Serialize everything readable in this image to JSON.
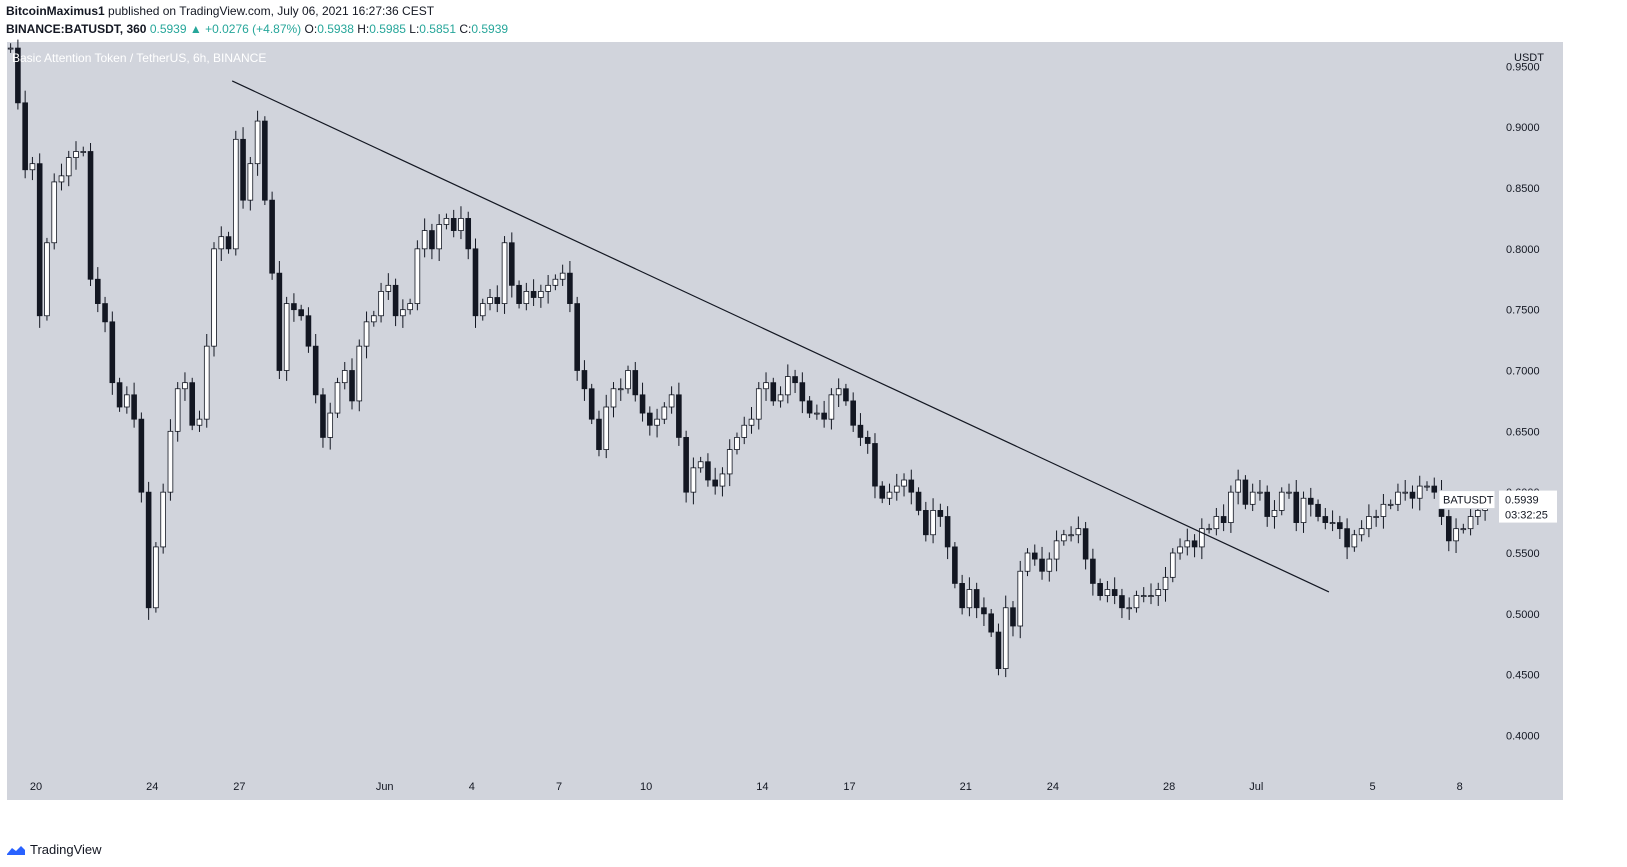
{
  "header": {
    "publisher": "BitcoinMaximus1",
    "published_text": "published on TradingView.com, July 06, 2021 16:27:36 CEST",
    "symbol": "BINANCE:BATUSDT, 360",
    "last": "0.5939",
    "change_arrow": "▲",
    "change": "+0.0276 (+4.87%)",
    "o_label": "O:",
    "o": "0.5938",
    "h_label": "H:",
    "h": "0.5985",
    "l_label": "L:",
    "l": "0.5851",
    "c_label": "C:",
    "c": "0.5939"
  },
  "footer": {
    "brand": "TradingView"
  },
  "colors": {
    "background": "#d1d4dc",
    "up_body": "#ffffff",
    "down_body": "#131722",
    "wick": "#131722",
    "axis_text": "#131722"
  },
  "chart_data": {
    "type": "candlestick",
    "title": "Basic Attention Token / TetherUS, 6h, BINANCE",
    "y_axis_unit": "USDT",
    "ylim": [
      0.37,
      0.97
    ],
    "y_ticks": [
      0.95,
      0.9,
      0.85,
      0.8,
      0.75,
      0.7,
      0.65,
      0.6,
      0.55,
      0.5,
      0.45,
      0.4
    ],
    "y_tick_labels": [
      "0.9500",
      "0.9000",
      "0.8500",
      "0.8000",
      "0.7500",
      "0.7000",
      "0.6500",
      "0.6000",
      "0.5500",
      "0.5000",
      "0.4500",
      "0.4000"
    ],
    "x_range": [
      "2021-05-19T00:00",
      "2021-07-09T06:00"
    ],
    "x_ticks": [
      {
        "date": "2021-05-20",
        "label": "20"
      },
      {
        "date": "2021-05-24",
        "label": "24"
      },
      {
        "date": "2021-05-27",
        "label": "27"
      },
      {
        "date": "2021-06-01",
        "label": "Jun"
      },
      {
        "date": "2021-06-04",
        "label": "4"
      },
      {
        "date": "2021-06-07",
        "label": "7"
      },
      {
        "date": "2021-06-10",
        "label": "10"
      },
      {
        "date": "2021-06-14",
        "label": "14"
      },
      {
        "date": "2021-06-17",
        "label": "17"
      },
      {
        "date": "2021-06-21",
        "label": "21"
      },
      {
        "date": "2021-06-24",
        "label": "24"
      },
      {
        "date": "2021-06-28",
        "label": "28"
      },
      {
        "date": "2021-07-01",
        "label": "Jul"
      },
      {
        "date": "2021-07-05",
        "label": "5"
      },
      {
        "date": "2021-07-08",
        "label": "8"
      }
    ],
    "start_time": "2021-05-19T00:00",
    "candle_interval": "6h",
    "closes": [
      0.965,
      0.92,
      0.865,
      0.87,
      0.745,
      0.805,
      0.855,
      0.86,
      0.875,
      0.88,
      0.88,
      0.775,
      0.755,
      0.74,
      0.69,
      0.67,
      0.68,
      0.66,
      0.6,
      0.505,
      0.555,
      0.6,
      0.65,
      0.685,
      0.69,
      0.655,
      0.66,
      0.72,
      0.8,
      0.81,
      0.8,
      0.89,
      0.84,
      0.87,
      0.905,
      0.84,
      0.78,
      0.7,
      0.755,
      0.75,
      0.745,
      0.72,
      0.68,
      0.645,
      0.665,
      0.69,
      0.7,
      0.675,
      0.72,
      0.74,
      0.745,
      0.765,
      0.77,
      0.745,
      0.75,
      0.755,
      0.8,
      0.815,
      0.8,
      0.82,
      0.825,
      0.815,
      0.825,
      0.8,
      0.745,
      0.755,
      0.76,
      0.755,
      0.805,
      0.77,
      0.755,
      0.765,
      0.76,
      0.765,
      0.77,
      0.775,
      0.78,
      0.755,
      0.7,
      0.685,
      0.66,
      0.635,
      0.67,
      0.685,
      0.685,
      0.7,
      0.68,
      0.665,
      0.655,
      0.66,
      0.67,
      0.68,
      0.645,
      0.6,
      0.62,
      0.625,
      0.61,
      0.605,
      0.615,
      0.635,
      0.645,
      0.655,
      0.66,
      0.685,
      0.69,
      0.675,
      0.68,
      0.695,
      0.69,
      0.675,
      0.665,
      0.665,
      0.66,
      0.68,
      0.685,
      0.675,
      0.655,
      0.645,
      0.64,
      0.605,
      0.595,
      0.6,
      0.605,
      0.61,
      0.6,
      0.585,
      0.565,
      0.585,
      0.58,
      0.555,
      0.525,
      0.505,
      0.52,
      0.505,
      0.5,
      0.485,
      0.455,
      0.505,
      0.49,
      0.535,
      0.55,
      0.545,
      0.535,
      0.545,
      0.56,
      0.565,
      0.565,
      0.57,
      0.545,
      0.525,
      0.515,
      0.52,
      0.515,
      0.505,
      0.505,
      0.515,
      0.515,
      0.515,
      0.52,
      0.53,
      0.55,
      0.555,
      0.56,
      0.555,
      0.57,
      0.57,
      0.58,
      0.575,
      0.6,
      0.61,
      0.59,
      0.6,
      0.6,
      0.58,
      0.585,
      0.6,
      0.6,
      0.575,
      0.595,
      0.59,
      0.58,
      0.575,
      0.575,
      0.57,
      0.555,
      0.565,
      0.57,
      0.58,
      0.58,
      0.59,
      0.59,
      0.6,
      0.6,
      0.595,
      0.605,
      0.605,
      0.6,
      0.58,
      0.56,
      0.57,
      0.57,
      0.58,
      0.585,
      0.5939
    ],
    "annotation": {
      "type": "trendline",
      "points": [
        {
          "date": "2021-05-26T18:00",
          "price": 0.938
        },
        {
          "date": "2021-07-03T12:00",
          "price": 0.518
        }
      ]
    },
    "price_label": {
      "symbol": "BATUSDT",
      "value": "0.5939",
      "countdown": "03:32:25"
    }
  }
}
